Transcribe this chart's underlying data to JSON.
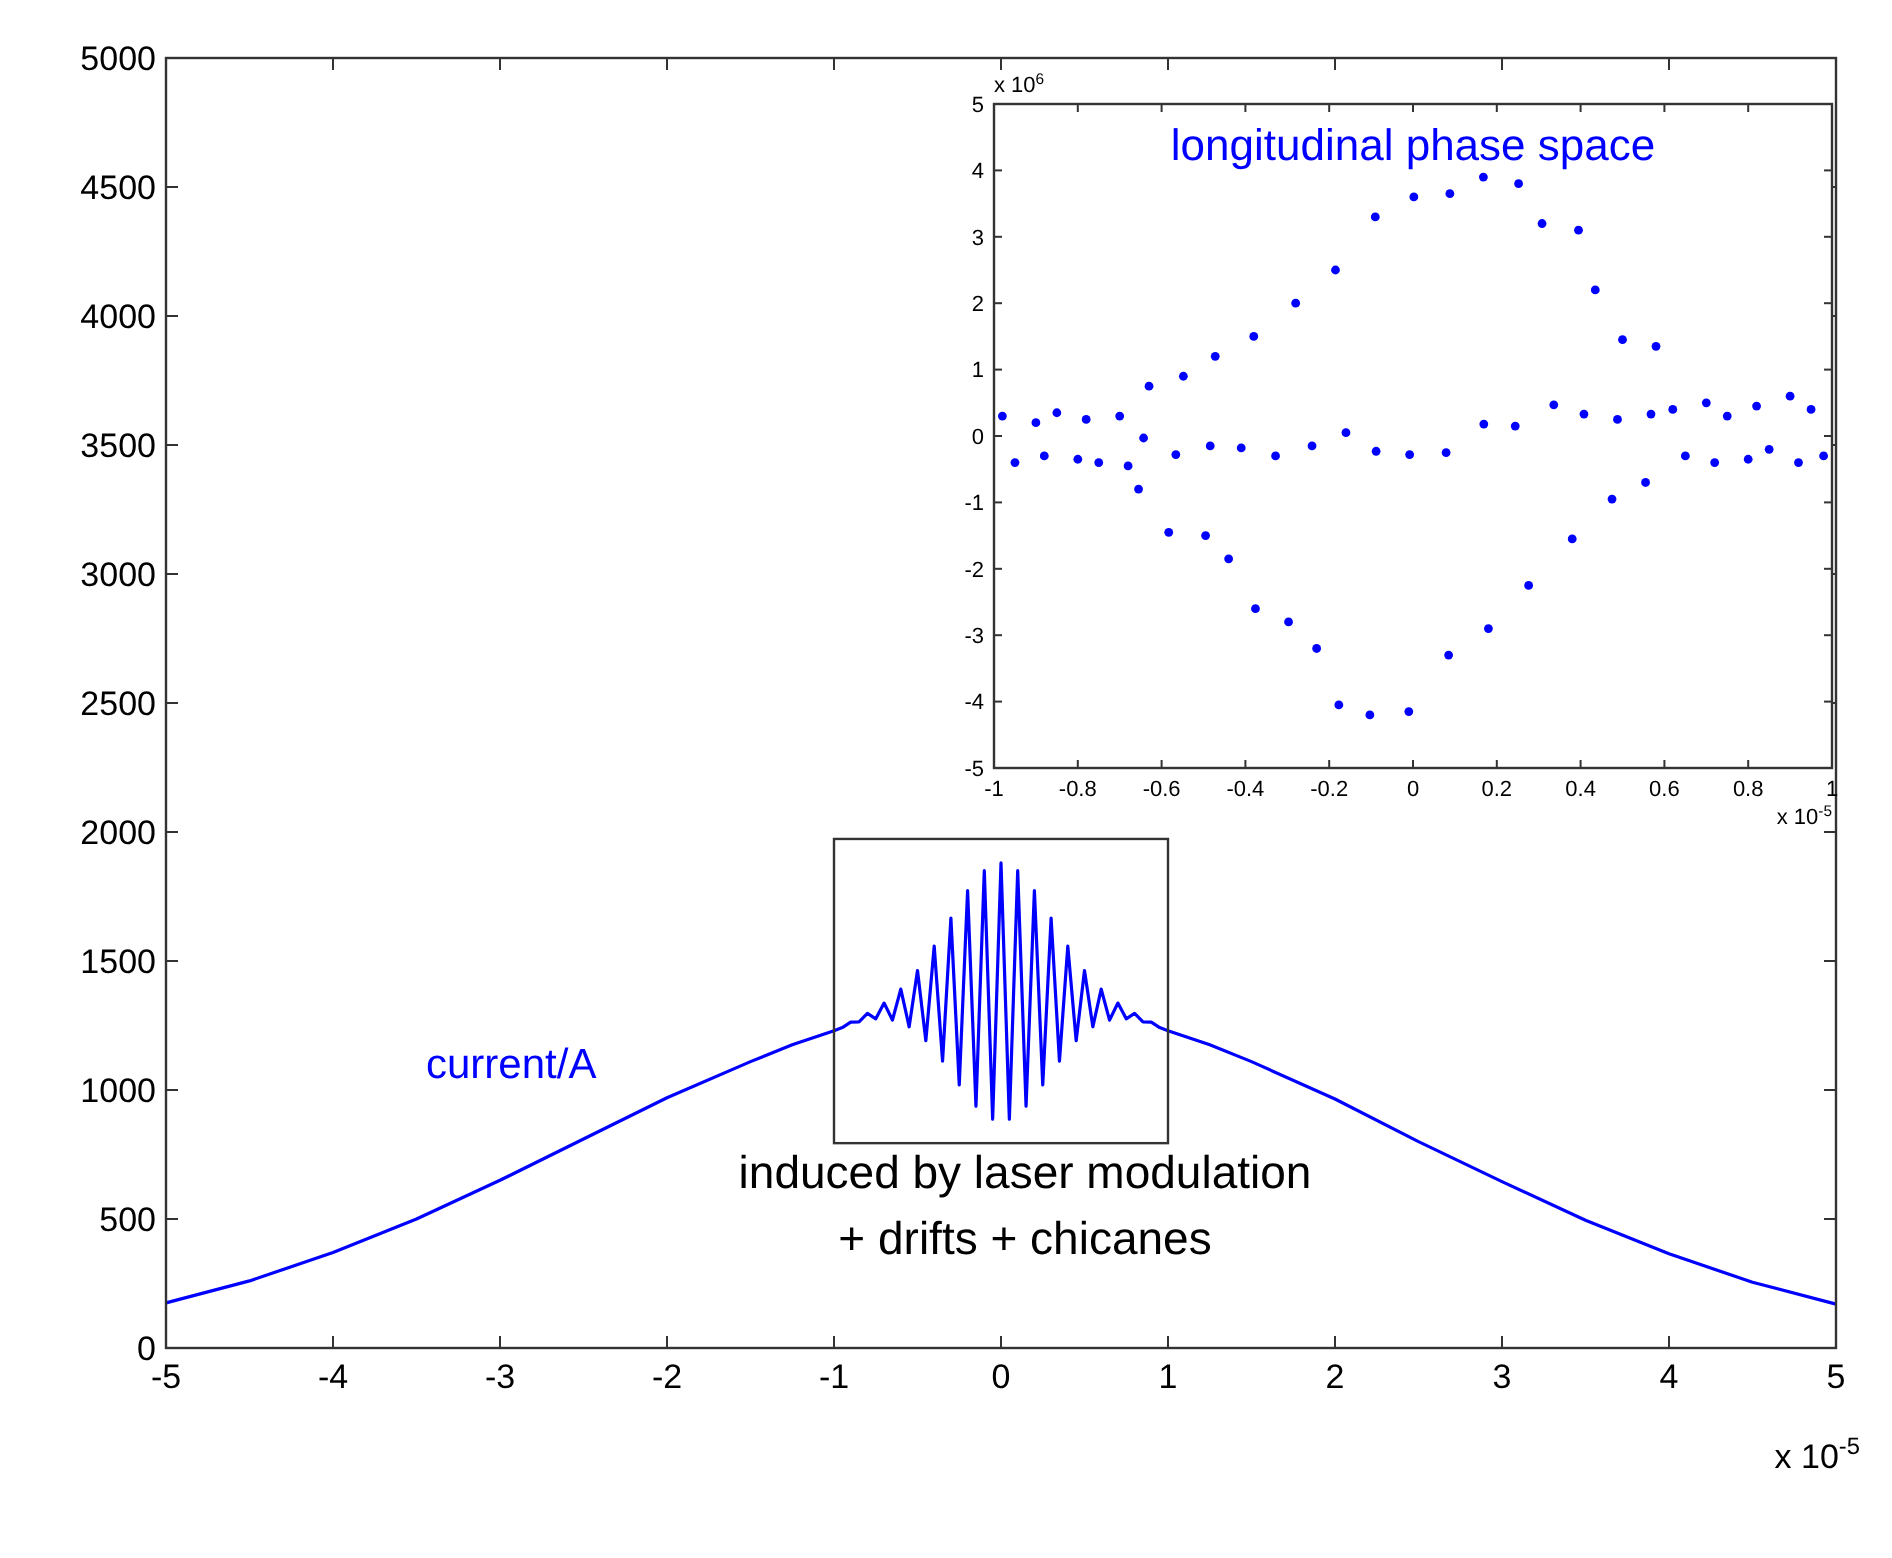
{
  "chart_data": [
    {
      "type": "line",
      "xlabel": "x 10$^{-5}$",
      "annotations": [
        "induced by laser modulation",
        "+ drifts + chicanes"
      ],
      "series": [
        {
          "name": "current/A",
          "color": "#0000ff",
          "x": [
            -5,
            -4.5,
            -4,
            -3.5,
            -3,
            -2.5,
            -2,
            -1.5,
            -1.25,
            -1,
            -0.95,
            -0.9,
            -0.85,
            -0.8,
            -0.75,
            -0.7,
            -0.65,
            -0.6,
            -0.55,
            -0.5,
            -0.45,
            -0.4,
            -0.35,
            -0.3,
            -0.25,
            -0.2,
            -0.15,
            -0.1,
            -0.05,
            0,
            0.05,
            0.1,
            0.15,
            0.2,
            0.25,
            0.3,
            0.35,
            0.4,
            0.45,
            0.5,
            0.55,
            0.6,
            0.65,
            0.7,
            0.75,
            0.8,
            0.85,
            0.9,
            0.95,
            1,
            1.25,
            1.5,
            2,
            2.5,
            3,
            3.5,
            4,
            4.5,
            5
          ],
          "values": [
            175,
            260,
            370,
            500,
            650,
            810,
            970,
            1110,
            1175,
            1230,
            1242,
            1263,
            1264,
            1297,
            1276,
            1337,
            1271,
            1391,
            1245,
            1463,
            1191,
            1558,
            1112,
            1666,
            1020,
            1773,
            937,
            1850,
            887,
            1880,
            887,
            1850,
            937,
            1773,
            1020,
            1666,
            1112,
            1558,
            1191,
            1463,
            1245,
            1391,
            1271,
            1337,
            1276,
            1297,
            1264,
            1263,
            1242,
            1230,
            1175,
            1110,
            965,
            800,
            645,
            495,
            365,
            255,
            170
          ]
        }
      ],
      "xlim": [
        -5,
        5
      ],
      "xticks": [
        -5,
        -4,
        -3,
        -2,
        -1,
        0,
        1,
        2,
        3,
        4,
        5
      ],
      "ylim": [
        0,
        5000
      ],
      "yticks": [
        0,
        500,
        1000,
        1500,
        2000,
        2500,
        3000,
        3500,
        4000,
        4500,
        5000
      ],
      "marker": "none",
      "line_style": "solid",
      "grid": false
    },
    {
      "type": "scatter",
      "title": "longitudinal phase space",
      "xlabel": "x 10$^{-5}$",
      "ylabel": "x 10$^{6}$",
      "series": [
        {
          "color": "#0000ff",
          "x": [
            -0.98,
            -0.95,
            -0.9,
            -0.88,
            -0.85,
            -0.8,
            -0.78,
            -0.75,
            -0.7,
            -0.68,
            -0.655,
            -0.643,
            -0.63,
            -0.583,
            -0.566,
            -0.548,
            -0.495,
            -0.484,
            -0.472,
            -0.44,
            -0.41,
            -0.38,
            -0.376,
            -0.328,
            -0.28,
            -0.297,
            -0.241,
            -0.185,
            -0.23,
            -0.16,
            -0.09,
            -0.177,
            -0.088,
            0.002,
            -0.103,
            -0.008,
            0.088,
            -0.01,
            0.079,
            0.168,
            0.085,
            0.169,
            0.252,
            0.18,
            0.244,
            0.308,
            0.276,
            0.336,
            0.395,
            0.38,
            0.408,
            0.435,
            0.475,
            0.488,
            0.5,
            0.555,
            0.568,
            0.58,
            0.62,
            0.65,
            0.7,
            0.72,
            0.75,
            0.8,
            0.82,
            0.85,
            0.9,
            0.92,
            0.95,
            0.98
          ],
          "values": [
            0.3,
            -0.4,
            0.2,
            -0.3,
            0.35,
            -0.35,
            0.25,
            -0.4,
            0.3,
            -0.45,
            -0.8,
            -0.03,
            0.75,
            -1.45,
            -0.28,
            0.9,
            -1.5,
            -0.15,
            1.2,
            -1.85,
            -0.18,
            1.5,
            -2.6,
            -0.3,
            2.0,
            -2.8,
            -0.15,
            2.5,
            -3.2,
            0.05,
            3.3,
            -4.05,
            -0.23,
            3.6,
            -4.2,
            -0.28,
            3.65,
            -4.15,
            -0.25,
            3.9,
            -3.3,
            0.18,
            3.8,
            -2.9,
            0.15,
            3.2,
            -2.25,
            0.47,
            3.1,
            -1.55,
            0.33,
            2.2,
            -0.95,
            0.25,
            1.45,
            -0.7,
            0.33,
            1.35,
            0.4,
            -0.3,
            0.5,
            -0.4,
            0.3,
            -0.35,
            0.45,
            -0.2,
            0.6,
            -0.4,
            0.4,
            -0.3
          ]
        }
      ],
      "xlim": [
        -1,
        1
      ],
      "xticks": [
        -1,
        -0.8,
        -0.6,
        -0.4,
        -0.2,
        0,
        0.2,
        0.4,
        0.6,
        0.8,
        1
      ],
      "ylim": [
        -5,
        5
      ],
      "yticks": [
        -5,
        -4,
        -3,
        -2,
        -1,
        0,
        1,
        2,
        3,
        4,
        5
      ],
      "marker": "circle",
      "grid": false
    }
  ]
}
